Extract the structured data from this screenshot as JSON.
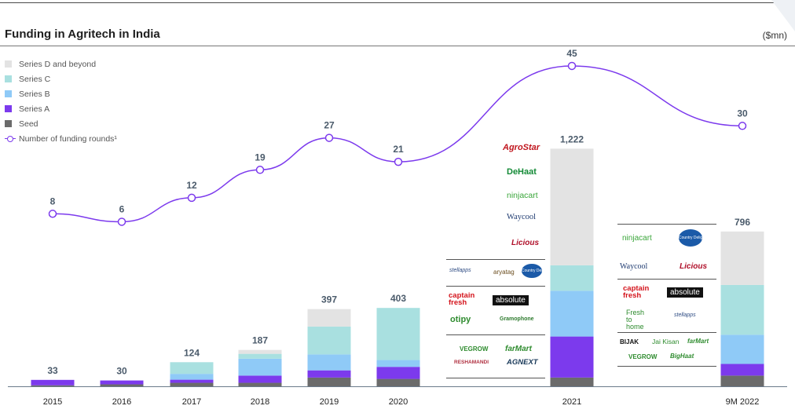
{
  "header": {
    "title": "Funding in Agritech in India",
    "unit": "($mn)"
  },
  "colors": {
    "series_d": "#e3e3e3",
    "series_c": "#a9e0e0",
    "series_b": "#8fcaf7",
    "series_a": "#7c3aed",
    "seed": "#6b6b6b",
    "rounds_line": "#7c3aed"
  },
  "chart_data": {
    "type": "bar",
    "title": "Funding in Agritech in India",
    "unit": "($mn)",
    "categories": [
      "2015",
      "2016",
      "2017",
      "2018",
      "2019",
      "2020",
      "2021",
      "9M 2022"
    ],
    "totals": [
      33,
      30,
      124,
      187,
      397,
      403,
      1222,
      796
    ],
    "total_labels": [
      "33",
      "30",
      "124",
      "187",
      "397",
      "403",
      "1,222",
      "796"
    ],
    "series": [
      {
        "name": "Seed",
        "values": [
          5,
          10,
          18,
          18,
          45,
          38,
          45,
          55
        ]
      },
      {
        "name": "Series A",
        "values": [
          28,
          20,
          16,
          37,
          37,
          62,
          211,
          60
        ]
      },
      {
        "name": "Series B",
        "values": [
          0,
          0,
          30,
          87,
          82,
          35,
          235,
          150
        ]
      },
      {
        "name": "Series C",
        "values": [
          0,
          0,
          60,
          25,
          143,
          268,
          131,
          256
        ]
      },
      {
        "name": "Series D and beyond",
        "values": [
          0,
          0,
          0,
          20,
          90,
          0,
          600,
          275
        ]
      }
    ],
    "line": {
      "name": "Number of funding rounds¹",
      "values": [
        8,
        6,
        12,
        19,
        27,
        21,
        45,
        30
      ]
    },
    "legend": [
      {
        "name": "Series D and beyond",
        "key": "series_d"
      },
      {
        "name": "Series C",
        "key": "series_c"
      },
      {
        "name": "Series B",
        "key": "series_b"
      },
      {
        "name": "Series A",
        "key": "series_a"
      },
      {
        "name": "Seed",
        "key": "seed"
      },
      {
        "name": "Number of funding rounds¹",
        "key": "line"
      }
    ],
    "legend_position": "top-left",
    "ylim": [
      0,
      1300
    ],
    "xlabel": "",
    "ylabel": ""
  },
  "logos_2021": {
    "later": [
      "AgroStar",
      "DeHaat",
      "ninjacart",
      "Waycool",
      "Licious"
    ],
    "b_row": [
      "stellapps",
      "aryatag",
      "Country Delight"
    ],
    "a_rows": [
      [
        "captain fresh",
        "absolute"
      ],
      [
        "otipy",
        "Gramophone"
      ]
    ],
    "seed_rows": [
      [
        "VEGROW",
        "farMart"
      ],
      [
        "RESHAMANDI",
        "AGNEXT"
      ]
    ]
  },
  "logos_2022": {
    "later": [
      [
        "ninjacart",
        "Country Delight"
      ],
      [
        "Waycool",
        "Licious"
      ]
    ],
    "a_rows": [
      [
        "captain fresh",
        "absolute"
      ],
      [
        "Fresh to home",
        "stellapps"
      ]
    ],
    "seed_rows": [
      [
        "BIJAK",
        "Jai Kisan",
        "farMart"
      ],
      [
        "VEGROW",
        "BigHaat"
      ]
    ]
  }
}
